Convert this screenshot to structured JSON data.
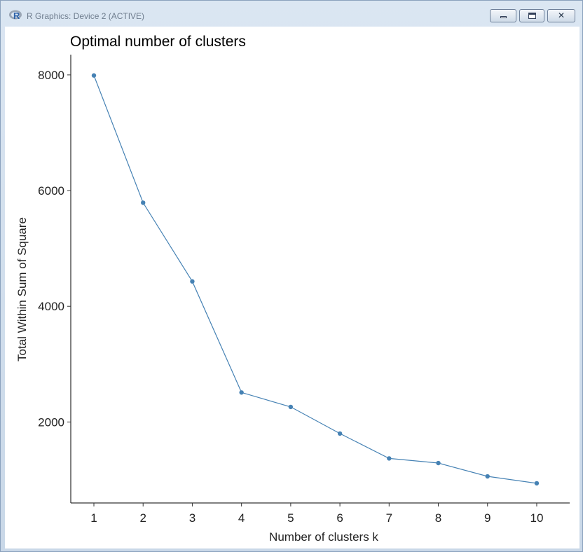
{
  "window": {
    "title": "R Graphics: Device 2 (ACTIVE)",
    "buttons": {
      "minimize": "minimize",
      "maximize": "maximize",
      "close": "close"
    }
  },
  "chart_data": {
    "type": "line",
    "title": "Optimal number of clusters",
    "xlabel": "Number of clusters k",
    "ylabel": "Total Within Sum of Square",
    "x": [
      1,
      2,
      3,
      4,
      5,
      6,
      7,
      8,
      9,
      10
    ],
    "categories": [
      "1",
      "2",
      "3",
      "4",
      "5",
      "6",
      "7",
      "8",
      "9",
      "10"
    ],
    "values": [
      7990,
      5790,
      4430,
      2510,
      2260,
      1800,
      1370,
      1290,
      1060,
      940
    ],
    "y_ticks": [
      2000,
      4000,
      6000,
      8000
    ],
    "ylim": [
      600,
      8350
    ],
    "grid": false,
    "series_color": "#4682b4"
  }
}
